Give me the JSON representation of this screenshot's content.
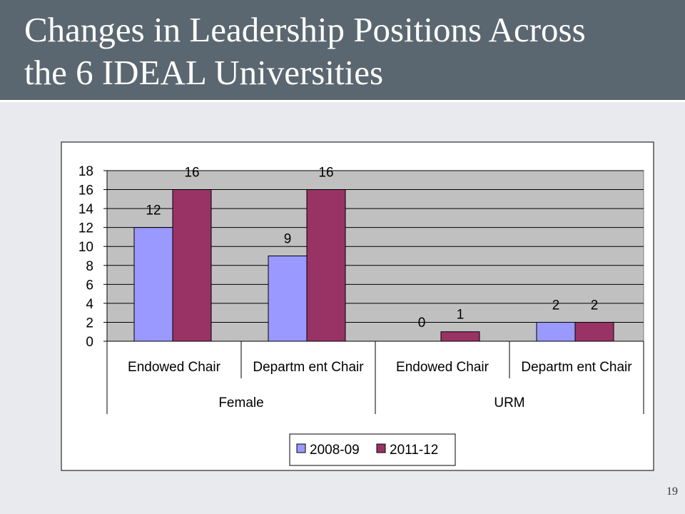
{
  "slide": {
    "title_line1": "Changes in Leadership Positions Across",
    "title_line2": "the 6 IDEAL Universities",
    "page_number": "19"
  },
  "colors": {
    "title_bar": "#5b6770",
    "background": "#e9eaee",
    "plot_area": "#c0c0c0",
    "series_2008": "#9999ff",
    "series_2011": "#993366"
  },
  "chart_data": {
    "type": "bar",
    "title": "",
    "xlabel": "",
    "ylabel": "",
    "ylim": [
      0,
      18
    ],
    "yticks": [
      0,
      2,
      4,
      6,
      8,
      10,
      12,
      14,
      16,
      18
    ],
    "grid": true,
    "legend_position": "bottom",
    "groups": [
      {
        "label": "Female",
        "categories": [
          "Endowed Chair",
          "Department Chair"
        ]
      },
      {
        "label": "URM",
        "categories": [
          "Endowed Chair",
          "Department Chair"
        ]
      }
    ],
    "category_labels": [
      "Endowed Chair",
      "Departm ent Chair",
      "Endowed Chair",
      "Departm ent Chair"
    ],
    "group_labels": [
      "Female",
      "URM"
    ],
    "series": [
      {
        "name": "2008-09",
        "color": "#9999ff",
        "values": [
          12,
          9,
          0,
          2
        ]
      },
      {
        "name": "2011-12",
        "color": "#993366",
        "values": [
          16,
          16,
          1,
          2
        ]
      }
    ]
  }
}
